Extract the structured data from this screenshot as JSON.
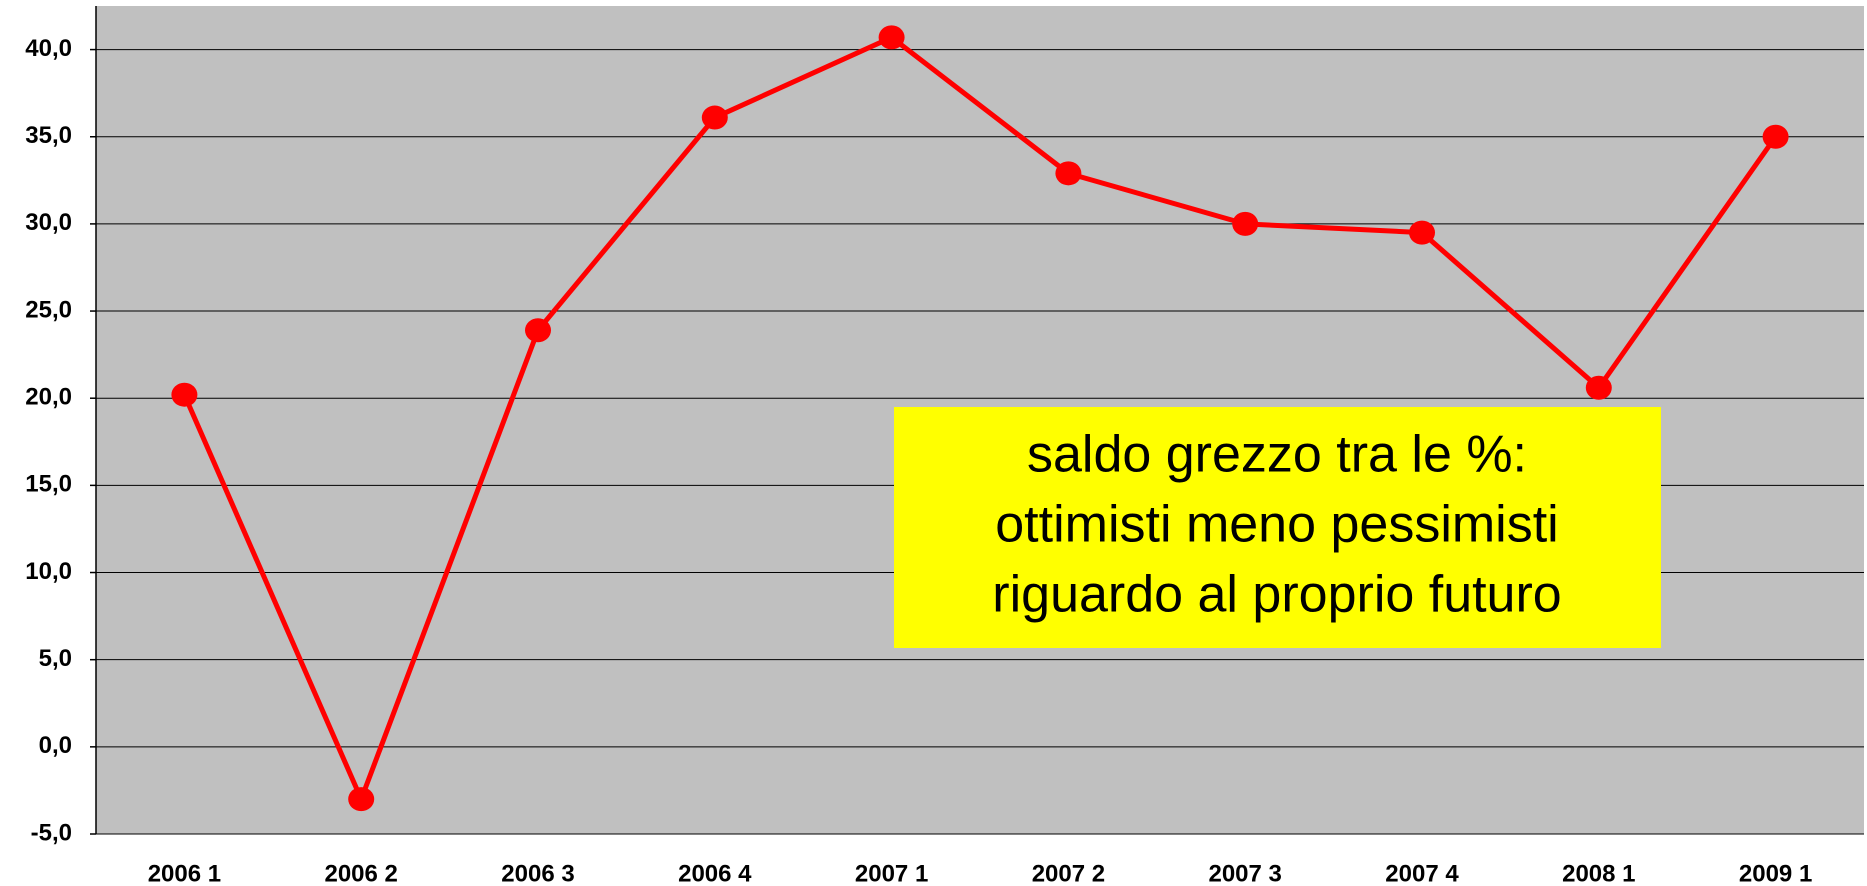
{
  "chart_data": {
    "type": "line",
    "categories": [
      "2006 1",
      "2006 2",
      "2006 3",
      "2006 4",
      "2007 1",
      "2007 2",
      "2007 3",
      "2007 4",
      "2008 1",
      "2009 1"
    ],
    "series": [
      {
        "name": "saldo",
        "color": "#ff0000",
        "values": [
          20.2,
          -3.0,
          23.9,
          36.1,
          40.7,
          32.9,
          30.0,
          29.5,
          20.6,
          35.0
        ]
      }
    ],
    "ylim": [
      -5,
      42.5
    ],
    "yticks": [
      {
        "value": -5,
        "label": "-5,0"
      },
      {
        "value": 0,
        "label": "0,0"
      },
      {
        "value": 5,
        "label": "5,0"
      },
      {
        "value": 10,
        "label": "10,0"
      },
      {
        "value": 15,
        "label": "15,0"
      },
      {
        "value": 20,
        "label": "20,0"
      },
      {
        "value": 25,
        "label": "25,0"
      },
      {
        "value": 30,
        "label": "30,0"
      },
      {
        "value": 35,
        "label": "35,0"
      },
      {
        "value": 40,
        "label": "40,0"
      }
    ],
    "grid": true,
    "annotation": [
      "saldo grezzo tra le %:",
      "ottimisti meno pessimisti",
      "riguardo al proprio futuro"
    ]
  }
}
